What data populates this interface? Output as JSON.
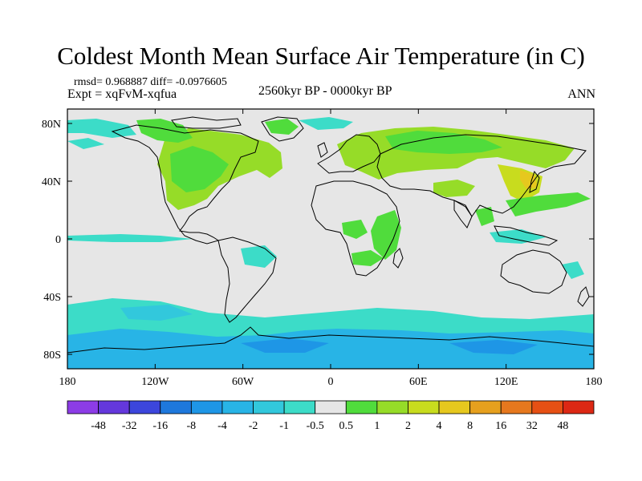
{
  "title": "Coldest Month Mean Surface Air Temperature (in C)",
  "stats_line": "rmsd= 0.968887 diff= -0.0976605",
  "experiment_line": "Expt = xqFvM-xqfua",
  "period_line": "2560kyr BP - 0000kyr BP",
  "season": "ANN",
  "map": {
    "projection": "equirectangular",
    "lon_range": [
      -180,
      180
    ],
    "lat_range": [
      -90,
      90
    ],
    "background_color": "#e6e6e6",
    "coastline_color": "#000000",
    "lon_ticks": [
      {
        "value": -180,
        "label": "180"
      },
      {
        "value": -120,
        "label": "120W"
      },
      {
        "value": -60,
        "label": "60W"
      },
      {
        "value": 0,
        "label": "0"
      },
      {
        "value": 60,
        "label": "60E"
      },
      {
        "value": 120,
        "label": "120E"
      },
      {
        "value": 180,
        "label": "180"
      }
    ],
    "lat_ticks": [
      {
        "value": 80,
        "label": "80N"
      },
      {
        "value": 40,
        "label": "40N"
      },
      {
        "value": 0,
        "label": "0"
      },
      {
        "value": -40,
        "label": "40S"
      },
      {
        "value": -80,
        "label": "80S"
      }
    ]
  },
  "colorbar": {
    "labels": [
      "-48",
      "-32",
      "-16",
      "-8",
      "-4",
      "-2",
      "-1",
      "-0.5",
      "0.5",
      "1",
      "2",
      "4",
      "8",
      "16",
      "32",
      "48"
    ],
    "colors": [
      "#8c3ce6",
      "#6438dc",
      "#3c46dc",
      "#1e78dc",
      "#1e96e6",
      "#28b4e6",
      "#32c8dc",
      "#3cdcc8",
      "#e6e6e6",
      "#50dc3c",
      "#96dc28",
      "#c8dc1e",
      "#e6c81e",
      "#e6a01e",
      "#e6781e",
      "#e65014",
      "#dc2814"
    ]
  }
}
